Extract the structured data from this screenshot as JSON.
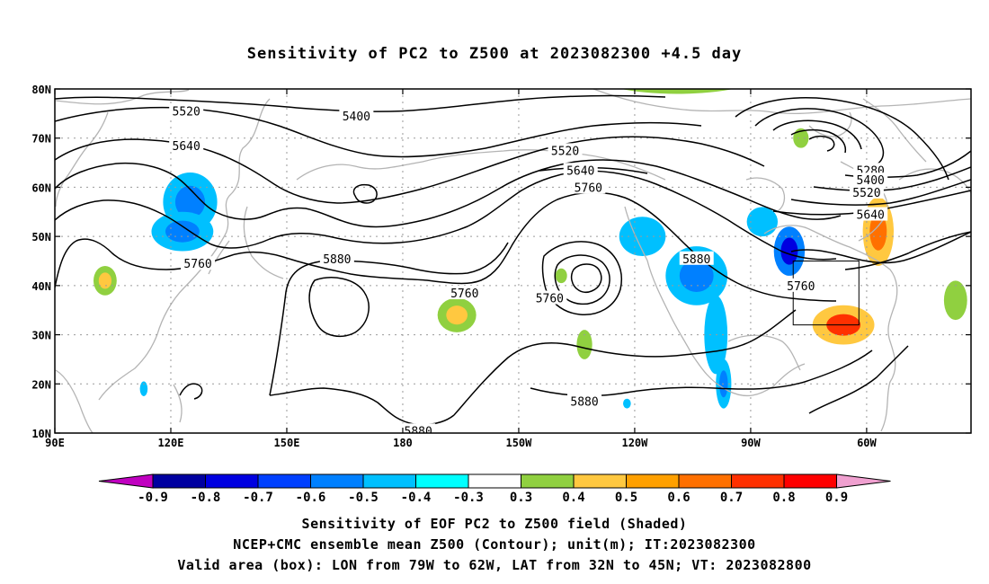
{
  "title": "Sensitivity of PC2 to Z500 at 2023082300 +4.5 day",
  "lon_ticks": [
    {
      "lon": 90,
      "label": "90E"
    },
    {
      "lon": 120,
      "label": "120E"
    },
    {
      "lon": 150,
      "label": "150E"
    },
    {
      "lon": 180,
      "label": "180"
    },
    {
      "lon": 210,
      "label": "150W"
    },
    {
      "lon": 240,
      "label": "120W"
    },
    {
      "lon": 270,
      "label": "90W"
    },
    {
      "lon": 300,
      "label": "60W"
    }
  ],
  "lat_ticks": [
    {
      "lat": 10,
      "label": "10N"
    },
    {
      "lat": 20,
      "label": "20N"
    },
    {
      "lat": 30,
      "label": "30N"
    },
    {
      "lat": 40,
      "label": "40N"
    },
    {
      "lat": 50,
      "label": "50N"
    },
    {
      "lat": 60,
      "label": "60N"
    },
    {
      "lat": 70,
      "label": "70N"
    },
    {
      "lat": 80,
      "label": "80N"
    }
  ],
  "map_extent": {
    "lon_min": 90,
    "lon_max": 327,
    "lat_min": 10,
    "lat_max": 80
  },
  "colorbar": {
    "labels": [
      "-0.9",
      "-0.8",
      "-0.7",
      "-0.6",
      "-0.5",
      "-0.4",
      "-0.3",
      "0.3",
      "0.4",
      "0.5",
      "0.6",
      "0.7",
      "0.8",
      "0.9"
    ],
    "below_color": "#c000c0",
    "above_color": "#f0a0d0",
    "colors": [
      "#0000a0",
      "#0000e0",
      "#0040ff",
      "#0080ff",
      "#00c0ff",
      "#00ffff",
      "#ffffff",
      "#90d040",
      "#ffc840",
      "#ffa000",
      "#ff7000",
      "#ff3000",
      "#ff0000"
    ]
  },
  "contour_labels": [
    {
      "text": "5520",
      "lon": 124,
      "lat": 75.5
    },
    {
      "text": "5640",
      "lon": 124,
      "lat": 68.5
    },
    {
      "text": "5400",
      "lon": 168,
      "lat": 74.5
    },
    {
      "text": "5760",
      "lon": 127,
      "lat": 44.5
    },
    {
      "text": "5880",
      "lon": 163,
      "lat": 45.5
    },
    {
      "text": "5760",
      "lon": 196,
      "lat": 38.5
    },
    {
      "text": "5760",
      "lon": 218,
      "lat": 37.5
    },
    {
      "text": "5520",
      "lon": 222,
      "lat": 67.5
    },
    {
      "text": "5640",
      "lon": 226,
      "lat": 63.5
    },
    {
      "text": "5760",
      "lon": 228,
      "lat": 60.0
    },
    {
      "text": "5880",
      "lon": 256,
      "lat": 45.5
    },
    {
      "text": "5880",
      "lon": 227,
      "lat": 16.5
    },
    {
      "text": "5880",
      "lon": 184,
      "lat": 10.5
    },
    {
      "text": "5280",
      "lon": 301,
      "lat": 63.5
    },
    {
      "text": "5400",
      "lon": 301,
      "lat": 61.5
    },
    {
      "text": "5520",
      "lon": 300,
      "lat": 59.0
    },
    {
      "text": "5640",
      "lon": 301,
      "lat": 54.5
    },
    {
      "text": "5760",
      "lon": 283,
      "lat": 40.0
    }
  ],
  "chart_data": {
    "type": "heatmap",
    "title": "Sensitivity of PC2 to Z500 at 2023082300 +4.5 day",
    "xlim": [
      90,
      327
    ],
    "ylim": [
      10,
      80
    ],
    "shading_levels": [
      -0.9,
      -0.8,
      -0.7,
      -0.6,
      -0.5,
      -0.4,
      -0.3,
      0.3,
      0.4,
      0.5,
      0.6,
      0.7,
      0.8,
      0.9
    ],
    "contour_values": [
      5280,
      5400,
      5520,
      5640,
      5760,
      5880
    ],
    "valid_box": {
      "lon_min": 281,
      "lon_max": 298,
      "lat_min": 32,
      "lat_max": 45
    },
    "blobs": [
      {
        "lon": 125,
        "lat": 57,
        "rlon": 7,
        "rlat": 6,
        "value": -0.4,
        "core": -0.5
      },
      {
        "lon": 123,
        "lat": 51,
        "rlon": 8,
        "rlat": 4,
        "value": -0.4,
        "core": -0.5
      },
      {
        "lon": 103,
        "lat": 41,
        "rlon": 3,
        "rlat": 3,
        "value": 0.3,
        "core": 0.4
      },
      {
        "lon": 194,
        "lat": 34,
        "rlon": 5,
        "rlat": 3.5,
        "value": 0.3,
        "core": 0.4
      },
      {
        "lon": 221,
        "lat": 42,
        "rlon": 1.5,
        "rlat": 1.5,
        "value": 0.3,
        "core": 0.3
      },
      {
        "lon": 227,
        "lat": 28,
        "rlon": 2,
        "rlat": 3,
        "value": 0.3,
        "core": 0.3
      },
      {
        "lon": 242,
        "lat": 50,
        "rlon": 6,
        "rlat": 4,
        "value": -0.4,
        "core": -0.4
      },
      {
        "lon": 256,
        "lat": 42,
        "rlon": 8,
        "rlat": 6,
        "value": -0.4,
        "core": -0.5
      },
      {
        "lon": 261,
        "lat": 30,
        "rlon": 3,
        "rlat": 8,
        "value": -0.4,
        "core": -0.4
      },
      {
        "lon": 263,
        "lat": 20,
        "rlon": 2,
        "rlat": 5,
        "value": -0.4,
        "core": -0.5
      },
      {
        "lon": 280,
        "lat": 47,
        "rlon": 4,
        "rlat": 5,
        "value": -0.5,
        "core": -0.7
      },
      {
        "lon": 273,
        "lat": 53,
        "rlon": 4,
        "rlat": 3,
        "value": -0.4,
        "core": -0.4
      },
      {
        "lon": 294,
        "lat": 32,
        "rlon": 8,
        "rlat": 4,
        "value": 0.4,
        "core": 0.7
      },
      {
        "lon": 303,
        "lat": 51,
        "rlon": 4,
        "rlat": 7,
        "value": 0.4,
        "core": 0.6
      },
      {
        "lon": 251,
        "lat": 83,
        "rlon": 22,
        "rlat": 4,
        "value": 0.3,
        "core": 0.4
      },
      {
        "lon": 283,
        "lat": 70,
        "rlon": 2,
        "rlat": 2,
        "value": 0.3,
        "core": 0.3
      },
      {
        "lon": 323,
        "lat": 37,
        "rlon": 3,
        "rlat": 4,
        "value": 0.3,
        "core": 0.3
      },
      {
        "lon": 113,
        "lat": 19,
        "rlon": 1,
        "rlat": 1.5,
        "value": -0.4,
        "core": -0.4
      },
      {
        "lon": 238,
        "lat": 16,
        "rlon": 1,
        "rlat": 1,
        "value": -0.4,
        "core": -0.4
      }
    ]
  },
  "captions": {
    "line1": "Sensitivity of EOF PC2 to Z500 field (Shaded)",
    "line2": "NCEP+CMC ensemble mean Z500 (Contour); unit(m); IT:2023082300",
    "line3": "Valid area (box): LON from 79W to 62W, LAT from 32N to 45N; VT: 2023082800"
  }
}
